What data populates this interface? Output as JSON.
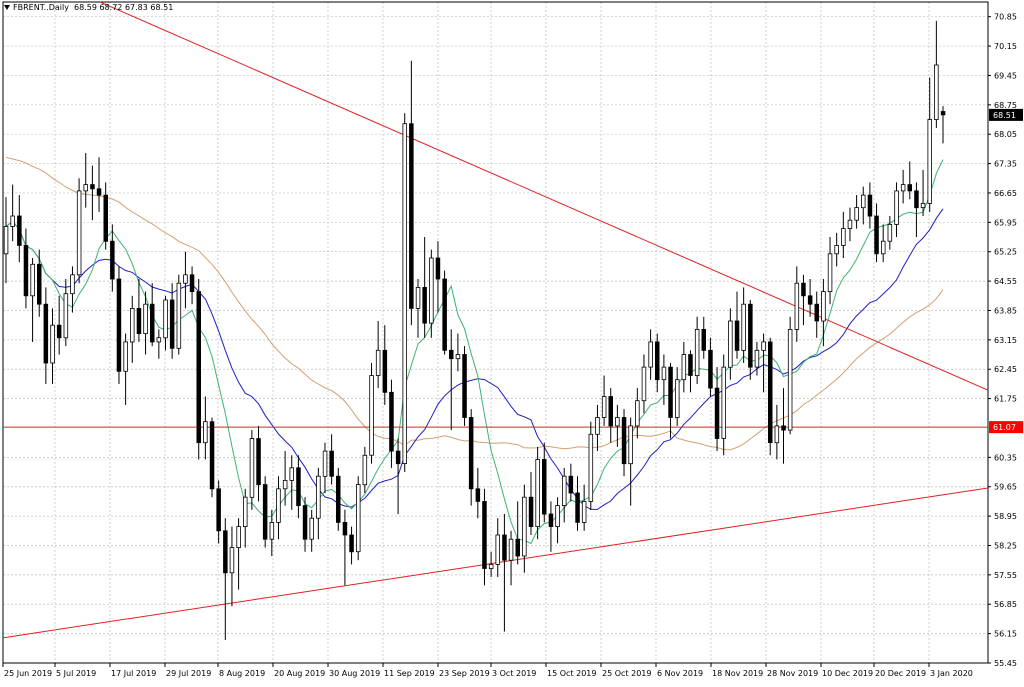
{
  "header": {
    "symbol": "FBRENT..Daily",
    "ohlc": "68.59 68.72 67.83 68.51"
  },
  "chart_data": {
    "type": "candlestick",
    "symbol": "FBRENT..",
    "timeframe": "Daily",
    "ylim": [
      55.45,
      71.2
    ],
    "y_ticks": [
      "70.85",
      "70.15",
      "69.45",
      "68.75",
      "68.05",
      "67.35",
      "66.65",
      "65.95",
      "65.25",
      "64.55",
      "63.85",
      "63.15",
      "62.45",
      "61.75",
      "60.35",
      "59.65",
      "58.95",
      "58.25",
      "57.55",
      "56.85",
      "56.15",
      "55.45"
    ],
    "x_tick_labels": [
      "25 Jun 2019",
      "5 Jul 2019",
      "17 Jul 2019",
      "29 Jul 2019",
      "8 Aug 2019",
      "20 Aug 2019",
      "30 Aug 2019",
      "11 Sep 2019",
      "23 Sep 2019",
      "3 Oct 2019",
      "15 Oct 2019",
      "25 Oct 2019",
      "6 Nov 2019",
      "18 Nov 2019",
      "28 Nov 2019",
      "10 Dec 2019",
      "20 Dec 2019",
      "3 Jan 2020"
    ],
    "price_label": "68.51",
    "level_label": "61.07",
    "colors": {
      "grid": "#c0c0c0",
      "candle": "#000000",
      "ma_fast": "#3cb371",
      "ma_mid": "#1e1ec8",
      "ma_slow": "#d2a070",
      "trendline": "#e02020",
      "level_badge": "#ff0000"
    },
    "trendlines": [
      {
        "kind": "down",
        "from": [
          "22 Jun 2019",
          71.2
        ],
        "to": [
          "3 Jan 2020+3",
          61.95
        ]
      },
      {
        "kind": "up",
        "from": [
          "25 Jun 2019",
          56.05
        ],
        "to": [
          "3 Jan 2020+3",
          59.62
        ]
      },
      {
        "kind": "horizontal",
        "value": 61.07
      }
    ],
    "candles": [
      [
        65.2,
        66.55,
        64.5,
        65.85
      ],
      [
        65.85,
        66.85,
        65.5,
        66.1
      ],
      [
        66.1,
        66.6,
        65.0,
        65.4
      ],
      [
        65.4,
        65.8,
        63.9,
        64.2
      ],
      [
        64.2,
        65.1,
        63.1,
        64.95
      ],
      [
        64.95,
        65.3,
        63.7,
        64.0
      ],
      [
        64.0,
        64.4,
        62.1,
        62.6
      ],
      [
        62.6,
        63.9,
        62.1,
        63.5
      ],
      [
        63.5,
        64.2,
        62.8,
        63.2
      ],
      [
        63.2,
        64.6,
        63.0,
        64.25
      ],
      [
        64.25,
        64.9,
        63.8,
        64.7
      ],
      [
        64.7,
        67.0,
        64.5,
        66.7
      ],
      [
        66.7,
        67.6,
        66.3,
        66.85
      ],
      [
        66.85,
        67.3,
        66.0,
        66.75
      ],
      [
        66.75,
        67.5,
        66.2,
        66.6
      ],
      [
        66.6,
        66.9,
        65.3,
        65.5
      ],
      [
        65.5,
        65.9,
        64.3,
        64.6
      ],
      [
        64.6,
        64.9,
        62.1,
        62.4
      ],
      [
        62.4,
        63.3,
        61.6,
        63.1
      ],
      [
        63.1,
        64.2,
        62.6,
        63.9
      ],
      [
        63.9,
        64.6,
        63.1,
        63.3
      ],
      [
        63.3,
        64.3,
        62.8,
        64.0
      ],
      [
        64.0,
        64.5,
        63.0,
        63.1
      ],
      [
        63.1,
        63.4,
        62.7,
        63.2
      ],
      [
        63.2,
        64.2,
        62.9,
        64.1
      ],
      [
        64.1,
        64.5,
        62.7,
        62.95
      ],
      [
        62.95,
        64.7,
        62.8,
        64.5
      ],
      [
        64.5,
        65.25,
        63.9,
        64.7
      ],
      [
        64.7,
        64.9,
        64.0,
        64.3
      ],
      [
        64.3,
        64.6,
        60.3,
        60.7
      ],
      [
        60.7,
        61.8,
        60.3,
        61.2
      ],
      [
        61.2,
        61.3,
        59.4,
        59.6
      ],
      [
        59.6,
        59.8,
        58.3,
        58.6
      ],
      [
        58.6,
        58.9,
        56.0,
        57.6
      ],
      [
        57.6,
        58.7,
        56.8,
        58.2
      ],
      [
        58.2,
        58.9,
        57.2,
        58.7
      ],
      [
        58.7,
        59.6,
        58.2,
        59.4
      ],
      [
        59.4,
        61.0,
        59.1,
        60.8
      ],
      [
        60.8,
        61.1,
        59.3,
        59.7
      ],
      [
        59.7,
        59.9,
        58.2,
        58.4
      ],
      [
        58.4,
        59.1,
        58.0,
        58.8
      ],
      [
        58.8,
        59.9,
        58.4,
        59.6
      ],
      [
        59.6,
        60.5,
        59.2,
        59.8
      ],
      [
        59.8,
        60.4,
        59.1,
        60.1
      ],
      [
        60.1,
        60.4,
        58.9,
        59.2
      ],
      [
        59.2,
        59.4,
        58.1,
        58.4
      ],
      [
        58.4,
        59.1,
        58.1,
        58.9
      ],
      [
        58.9,
        60.1,
        58.4,
        59.9
      ],
      [
        59.9,
        60.7,
        59.5,
        60.5
      ],
      [
        60.5,
        60.9,
        59.7,
        59.9
      ],
      [
        59.9,
        60.1,
        58.6,
        58.8
      ],
      [
        58.8,
        59.1,
        57.3,
        58.5
      ],
      [
        58.5,
        58.7,
        57.8,
        58.1
      ],
      [
        58.1,
        59.9,
        57.9,
        59.7
      ],
      [
        59.7,
        60.6,
        59.5,
        60.4
      ],
      [
        60.4,
        62.6,
        60.2,
        62.3
      ],
      [
        62.3,
        63.6,
        62.0,
        62.9
      ],
      [
        62.9,
        63.5,
        61.6,
        61.9
      ],
      [
        61.9,
        62.2,
        60.1,
        60.5
      ],
      [
        60.5,
        60.8,
        59.0,
        60.2
      ],
      [
        60.2,
        68.55,
        60.0,
        68.3
      ],
      [
        68.3,
        69.8,
        63.5,
        63.9
      ],
      [
        63.9,
        64.6,
        63.2,
        64.4
      ],
      [
        64.4,
        65.6,
        63.2,
        63.55
      ],
      [
        63.55,
        65.3,
        63.2,
        65.1
      ],
      [
        65.1,
        65.5,
        63.8,
        64.6
      ],
      [
        64.6,
        64.8,
        62.8,
        62.9
      ],
      [
        62.9,
        63.4,
        61.0,
        62.7
      ],
      [
        62.7,
        63.3,
        62.4,
        62.8
      ],
      [
        62.8,
        63.0,
        61.1,
        61.3
      ],
      [
        61.3,
        61.5,
        59.2,
        59.6
      ],
      [
        59.6,
        60.1,
        58.9,
        59.3
      ],
      [
        59.3,
        59.6,
        57.3,
        57.7
      ],
      [
        57.7,
        58.1,
        57.5,
        57.8
      ],
      [
        57.8,
        58.9,
        57.5,
        58.5
      ],
      [
        58.5,
        59.0,
        56.2,
        57.9
      ],
      [
        57.9,
        58.6,
        57.3,
        58.4
      ],
      [
        58.4,
        59.3,
        57.8,
        58.0
      ],
      [
        58.0,
        59.7,
        57.6,
        59.4
      ],
      [
        59.4,
        60.0,
        58.5,
        58.7
      ],
      [
        58.7,
        60.6,
        58.4,
        60.3
      ],
      [
        60.3,
        60.7,
        58.8,
        59.0
      ],
      [
        59.0,
        59.3,
        58.1,
        58.7
      ],
      [
        58.7,
        59.4,
        58.3,
        59.2
      ],
      [
        59.2,
        60.1,
        58.8,
        59.9
      ],
      [
        59.9,
        60.2,
        59.3,
        59.5
      ],
      [
        59.5,
        59.9,
        58.6,
        58.8
      ],
      [
        58.8,
        59.7,
        58.6,
        59.3
      ],
      [
        59.3,
        61.2,
        59.1,
        60.9
      ],
      [
        60.9,
        61.6,
        60.5,
        61.3
      ],
      [
        61.3,
        62.3,
        61.1,
        61.8
      ],
      [
        61.8,
        62.0,
        60.7,
        61.1
      ],
      [
        61.1,
        61.6,
        60.6,
        61.3
      ],
      [
        61.3,
        61.5,
        59.9,
        60.2
      ],
      [
        60.2,
        61.3,
        59.2,
        61.1
      ],
      [
        61.1,
        62.0,
        60.8,
        61.7
      ],
      [
        61.7,
        62.8,
        61.4,
        62.5
      ],
      [
        62.5,
        63.4,
        62.2,
        63.1
      ],
      [
        63.1,
        63.3,
        61.9,
        62.2
      ],
      [
        62.2,
        62.8,
        61.6,
        62.5
      ],
      [
        62.5,
        62.6,
        60.8,
        61.3
      ],
      [
        61.3,
        62.5,
        61.1,
        62.2
      ],
      [
        62.2,
        63.1,
        61.9,
        62.8
      ],
      [
        62.8,
        62.9,
        61.9,
        62.3
      ],
      [
        62.3,
        63.7,
        62.1,
        63.4
      ],
      [
        63.4,
        63.7,
        62.7,
        62.9
      ],
      [
        62.9,
        63.2,
        61.8,
        62.0
      ],
      [
        62.0,
        62.5,
        60.5,
        60.8
      ],
      [
        60.8,
        62.8,
        60.4,
        62.5
      ],
      [
        62.5,
        63.9,
        62.2,
        63.6
      ],
      [
        63.6,
        64.3,
        62.7,
        62.9
      ],
      [
        62.9,
        64.4,
        62.6,
        64.0
      ],
      [
        64.0,
        64.1,
        62.2,
        62.5
      ],
      [
        62.5,
        63.1,
        62.3,
        62.9
      ],
      [
        62.9,
        63.3,
        61.9,
        63.1
      ],
      [
        63.1,
        63.2,
        60.4,
        60.7
      ],
      [
        60.7,
        61.6,
        60.3,
        61.1
      ],
      [
        61.1,
        62.0,
        60.2,
        61.0
      ],
      [
        61.0,
        63.7,
        60.9,
        63.4
      ],
      [
        63.4,
        64.9,
        63.1,
        64.5
      ],
      [
        64.5,
        64.7,
        63.5,
        64.2
      ],
      [
        64.2,
        64.6,
        63.7,
        64.0
      ],
      [
        64.0,
        64.3,
        63.2,
        63.6
      ],
      [
        63.6,
        64.6,
        63.0,
        64.3
      ],
      [
        64.3,
        65.6,
        64.0,
        65.2
      ],
      [
        65.2,
        65.7,
        64.9,
        65.4
      ],
      [
        65.4,
        66.2,
        65.1,
        65.8
      ],
      [
        65.8,
        66.3,
        65.5,
        66.0
      ],
      [
        66.0,
        66.6,
        65.8,
        66.3
      ],
      [
        66.3,
        66.8,
        65.9,
        66.6
      ],
      [
        66.6,
        66.9,
        65.8,
        66.1
      ],
      [
        66.1,
        66.4,
        65.0,
        65.2
      ],
      [
        65.2,
        65.9,
        65.0,
        65.5
      ],
      [
        65.5,
        66.1,
        65.3,
        65.9
      ],
      [
        65.9,
        66.9,
        65.6,
        66.7
      ],
      [
        66.7,
        67.2,
        66.4,
        66.85
      ],
      [
        66.85,
        67.4,
        66.5,
        66.7
      ],
      [
        66.7,
        66.9,
        65.6,
        66.3
      ],
      [
        66.3,
        67.2,
        66.1,
        66.4
      ],
      [
        66.4,
        69.4,
        66.2,
        68.4
      ],
      [
        68.4,
        70.75,
        68.2,
        69.7
      ],
      [
        68.59,
        68.72,
        67.83,
        68.51
      ]
    ]
  }
}
